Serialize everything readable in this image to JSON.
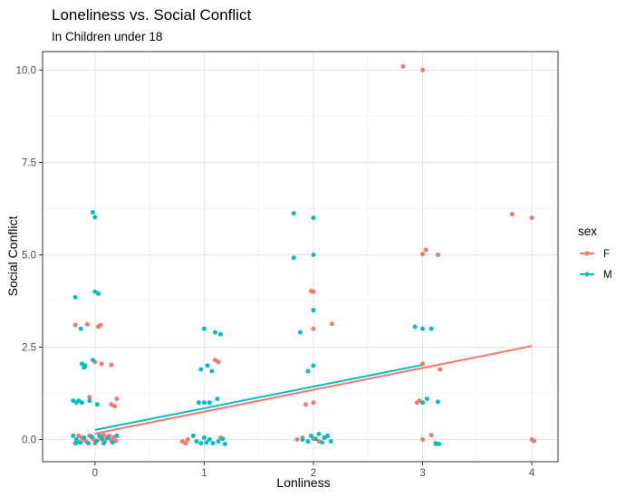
{
  "chart_data": {
    "type": "scatter",
    "title": "Loneliness vs. Social Conflict",
    "subtitle": "In Children under 18",
    "xlabel": "Lonliness",
    "ylabel": "Social Conflict",
    "xlim": [
      -0.48,
      4.24
    ],
    "ylim": [
      -0.6,
      10.5
    ],
    "x_ticks": [
      0,
      1,
      2,
      3,
      4
    ],
    "x_tick_labels": [
      "0",
      "1",
      "2",
      "3",
      "4"
    ],
    "y_ticks": [
      0,
      2.5,
      5,
      7.5,
      10
    ],
    "y_tick_labels": [
      "0.0",
      "2.5",
      "5.0",
      "7.5",
      "10.0"
    ],
    "grid": true,
    "legend": {
      "title": "sex",
      "position": "right"
    },
    "series": [
      {
        "name": "F",
        "color": "#F8766D",
        "points": [
          [
            -0.18,
            3.1
          ],
          [
            -0.07,
            3.12
          ],
          [
            0.03,
            3.05
          ],
          [
            0.05,
            3.1
          ],
          [
            0.0,
            2.1
          ],
          [
            0.06,
            2.05
          ],
          [
            0.15,
            2.02
          ],
          [
            -0.05,
            1.15
          ],
          [
            0.15,
            0.95
          ],
          [
            0.18,
            0.9
          ],
          [
            0.2,
            1.1
          ],
          [
            -0.15,
            0.1
          ],
          [
            -0.12,
            0.05
          ],
          [
            -0.1,
            0.0
          ],
          [
            -0.08,
            -0.05
          ],
          [
            -0.05,
            0.1
          ],
          [
            -0.02,
            0.02
          ],
          [
            0.02,
            -0.03
          ],
          [
            0.05,
            0.08
          ],
          [
            0.07,
            0.0
          ],
          [
            0.09,
            -0.05
          ],
          [
            0.11,
            0.05
          ],
          [
            0.13,
            0.1
          ],
          [
            0.15,
            -0.02
          ],
          [
            0.17,
            0.06
          ],
          [
            0.19,
            -0.04
          ],
          [
            0.0,
            -0.1
          ],
          [
            0.08,
            0.12
          ],
          [
            -0.13,
            -0.08
          ],
          [
            0.8,
            -0.05
          ],
          [
            0.83,
            -0.1
          ],
          [
            0.85,
            0.0
          ],
          [
            1.1,
            2.15
          ],
          [
            1.13,
            2.1
          ],
          [
            1.15,
            0.05
          ],
          [
            1.85,
            0.0
          ],
          [
            1.9,
            0.05
          ],
          [
            1.93,
            0.95
          ],
          [
            1.98,
            4.02
          ],
          [
            2.0,
            4.0
          ],
          [
            2.0,
            3.0
          ],
          [
            2.0,
            1.0
          ],
          [
            2.0,
            0.02
          ],
          [
            2.05,
            -0.05
          ],
          [
            2.17,
            3.13
          ],
          [
            2.1,
            0.05
          ],
          [
            2.82,
            10.1
          ],
          [
            2.95,
            1.0
          ],
          [
            2.97,
            1.05
          ],
          [
            3.0,
            10.0
          ],
          [
            3.0,
            5.02
          ],
          [
            3.03,
            5.13
          ],
          [
            3.0,
            2.05
          ],
          [
            3.0,
            0.0
          ],
          [
            3.08,
            0.12
          ],
          [
            3.14,
            5.0
          ],
          [
            3.16,
            1.9
          ],
          [
            3.12,
            -0.12
          ],
          [
            3.82,
            6.1
          ],
          [
            4.0,
            6.0
          ],
          [
            4.0,
            0.0
          ],
          [
            4.02,
            -0.04
          ]
        ],
        "trend": [
          [
            0.0,
            0.16
          ],
          [
            4.0,
            2.53
          ]
        ]
      },
      {
        "name": "M",
        "color": "#00BFC4",
        "points": [
          [
            -0.02,
            6.15
          ],
          [
            0.0,
            6.02
          ],
          [
            -0.18,
            3.85
          ],
          [
            0.0,
            4.0
          ],
          [
            0.03,
            3.95
          ],
          [
            -0.13,
            3.0
          ],
          [
            -0.12,
            2.05
          ],
          [
            -0.1,
            1.95
          ],
          [
            -0.09,
            2.0
          ],
          [
            -0.02,
            2.15
          ],
          [
            -0.2,
            1.05
          ],
          [
            -0.17,
            1.0
          ],
          [
            -0.15,
            1.05
          ],
          [
            -0.12,
            1.0
          ],
          [
            -0.05,
            1.05
          ],
          [
            0.02,
            0.95
          ],
          [
            -0.2,
            0.1
          ],
          [
            -0.17,
            0.0
          ],
          [
            -0.14,
            -0.08
          ],
          [
            -0.1,
            0.05
          ],
          [
            -0.06,
            -0.1
          ],
          [
            -0.03,
            0.08
          ],
          [
            0.01,
            -0.05
          ],
          [
            0.04,
            0.1
          ],
          [
            0.08,
            -0.1
          ],
          [
            0.12,
            0.04
          ],
          [
            0.16,
            -0.08
          ],
          [
            0.2,
            0.1
          ],
          [
            -0.18,
            -0.1
          ],
          [
            0.06,
            0.02
          ],
          [
            0.95,
            1.0
          ],
          [
            0.97,
            1.9
          ],
          [
            1.0,
            3.0
          ],
          [
            1.0,
            1.0
          ],
          [
            1.03,
            2.0
          ],
          [
            1.05,
            1.0
          ],
          [
            1.07,
            1.85
          ],
          [
            1.1,
            2.9
          ],
          [
            1.12,
            1.1
          ],
          [
            1.15,
            2.85
          ],
          [
            0.9,
            0.1
          ],
          [
            0.93,
            -0.05
          ],
          [
            0.97,
            -0.1
          ],
          [
            1.0,
            0.05
          ],
          [
            1.02,
            -0.08
          ],
          [
            1.05,
            0.0
          ],
          [
            1.08,
            -0.1
          ],
          [
            1.13,
            -0.05
          ],
          [
            1.17,
            0.02
          ],
          [
            1.19,
            -0.12
          ],
          [
            1.82,
            6.12
          ],
          [
            1.82,
            4.92
          ],
          [
            2.0,
            6.0
          ],
          [
            2.0,
            5.0
          ],
          [
            1.88,
            2.9
          ],
          [
            2.0,
            3.5
          ],
          [
            1.95,
            1.85
          ],
          [
            2.0,
            2.0
          ],
          [
            1.9,
            0.0
          ],
          [
            1.95,
            -0.05
          ],
          [
            1.98,
            0.1
          ],
          [
            2.02,
            0.02
          ],
          [
            2.05,
            0.15
          ],
          [
            2.08,
            -0.08
          ],
          [
            2.1,
            0.05
          ],
          [
            2.13,
            0.1
          ],
          [
            2.16,
            -0.05
          ],
          [
            2.93,
            3.05
          ],
          [
            3.0,
            3.0
          ],
          [
            3.08,
            3.0
          ],
          [
            3.0,
            1.0
          ],
          [
            3.04,
            1.1
          ],
          [
            3.14,
            1.02
          ],
          [
            3.12,
            -0.1
          ],
          [
            3.15,
            -0.12
          ]
        ],
        "trend": [
          [
            0.0,
            0.26
          ],
          [
            3.0,
            2.02
          ]
        ]
      }
    ]
  }
}
